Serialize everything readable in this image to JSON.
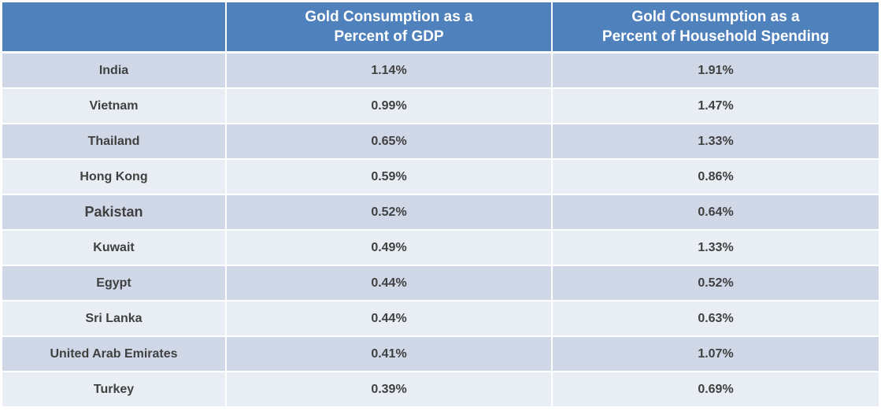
{
  "chart_data": {
    "type": "table",
    "columns": [
      "",
      "Gold Consumption as a Percent of GDP",
      "Gold Consumption as a Percent of Household Spending"
    ],
    "column_lines": [
      [],
      [
        "Gold Consumption as a",
        "Percent of GDP"
      ],
      [
        "Gold Consumption as a",
        "Percent of Household Spending"
      ]
    ],
    "rows": [
      {
        "country": "India",
        "gdp": "1.14%",
        "household": "1.91%"
      },
      {
        "country": "Vietnam",
        "gdp": "0.99%",
        "household": "1.47%"
      },
      {
        "country": "Thailand",
        "gdp": "0.65%",
        "household": "1.33%"
      },
      {
        "country": "Hong Kong",
        "gdp": "0.59%",
        "household": "0.86%"
      },
      {
        "country": "Pakistan",
        "gdp": "0.52%",
        "household": "0.64%"
      },
      {
        "country": "Kuwait",
        "gdp": "0.49%",
        "household": "1.33%"
      },
      {
        "country": "Egypt",
        "gdp": "0.44%",
        "household": "0.52%"
      },
      {
        "country": "Sri Lanka",
        "gdp": "0.44%",
        "household": "0.63%"
      },
      {
        "country": "United Arab Emirates",
        "gdp": "0.41%",
        "household": "1.07%"
      },
      {
        "country": "Turkey",
        "gdp": "0.39%",
        "household": "0.69%"
      }
    ]
  },
  "colors": {
    "header": "#4f81bd",
    "row_dark": "#d0d8e8",
    "row_light": "#e9edf4",
    "text": "#404040"
  }
}
